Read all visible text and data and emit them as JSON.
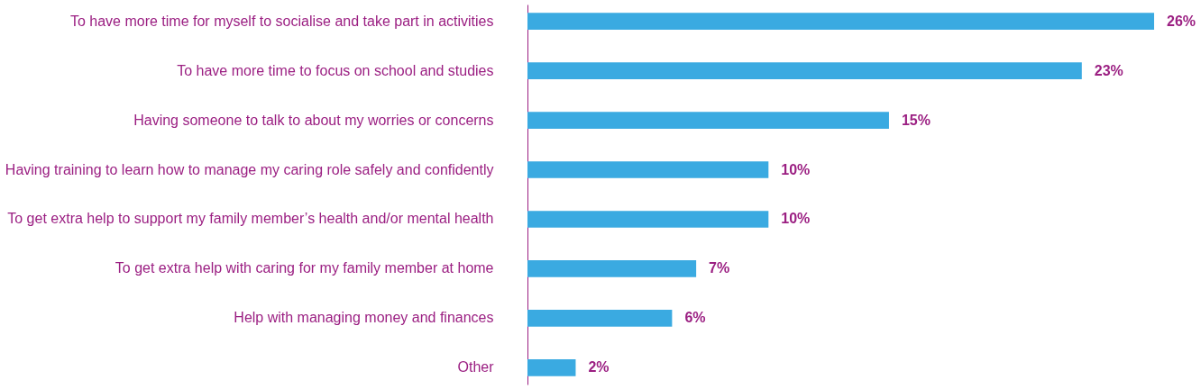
{
  "chart_data": {
    "type": "bar",
    "orientation": "horizontal",
    "categories": [
      "To have more time for myself to socialise and take part in activities",
      "To have more time to focus on school and studies",
      "Having someone to talk to about my worries or concerns",
      "Having training to learn how to manage my caring role safely and confidently",
      "To get extra help to support my family member’s health and/or mental health",
      "To get extra help with caring for my family member at home",
      "Help with managing money and finances",
      "Other"
    ],
    "values": [
      26,
      23,
      15,
      10,
      10,
      7,
      6,
      2
    ],
    "value_labels": [
      "26%",
      "23%",
      "15%",
      "10%",
      "10%",
      "7%",
      "6%",
      "2%"
    ],
    "color": "#3aaae1",
    "grid": false,
    "tick_labels": "y"
  }
}
